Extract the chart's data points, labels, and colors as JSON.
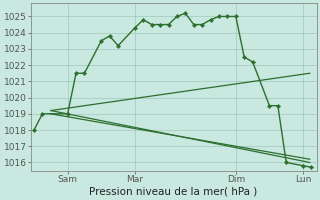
{
  "xlabel": "Pression niveau de la mer( hPa )",
  "background_color": "#c8e8e0",
  "grid_color": "#a0c8c0",
  "line_color": "#2d6e2d",
  "ylim": [
    1015.5,
    1025.8
  ],
  "yticks": [
    1016,
    1017,
    1018,
    1019,
    1020,
    1021,
    1022,
    1023,
    1024,
    1025
  ],
  "xlim": [
    -0.1,
    8.4
  ],
  "xtick_all": [
    0,
    1,
    2,
    3,
    4,
    5,
    6,
    7,
    8
  ],
  "xtick_major_positions": [
    1,
    3,
    6,
    8
  ],
  "xtick_major_labels": [
    "Sam",
    "Mar",
    "Dim",
    "Lun"
  ],
  "line_main": {
    "x": [
      0,
      0.25,
      1.0,
      1.25,
      1.5,
      2.0,
      2.25,
      2.5,
      3.0,
      3.25,
      3.5,
      3.75,
      4.0,
      4.25,
      4.5,
      4.75,
      5.0,
      5.25,
      5.5,
      5.75,
      6.0,
      6.25,
      6.5,
      7.0,
      7.25,
      7.5,
      8.0,
      8.25
    ],
    "y": [
      1018.0,
      1019.0,
      1019.0,
      1021.5,
      1021.5,
      1023.5,
      1023.8,
      1023.2,
      1024.3,
      1024.8,
      1024.5,
      1024.5,
      1024.5,
      1025.0,
      1025.2,
      1024.5,
      1024.5,
      1024.8,
      1025.0,
      1025.0,
      1025.0,
      1022.5,
      1022.2,
      1019.5,
      1019.5,
      1016.0,
      1015.8,
      1015.7
    ]
  },
  "line_fan1": {
    "x": [
      0.5,
      8.25
    ],
    "y": [
      1019.2,
      1016.0
    ]
  },
  "line_fan2": {
    "x": [
      0.5,
      8.25
    ],
    "y": [
      1019.2,
      1021.5
    ]
  },
  "line_fan3": {
    "x": [
      0.5,
      8.25
    ],
    "y": [
      1019.2,
      1016.2
    ]
  }
}
